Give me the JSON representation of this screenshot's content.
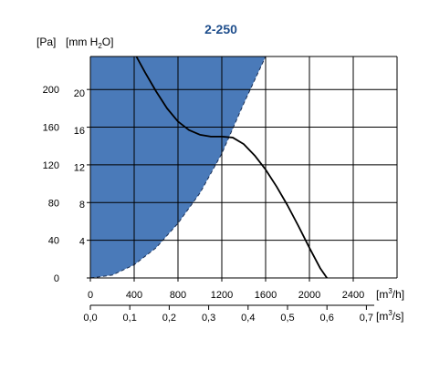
{
  "chart_data": {
    "type": "line",
    "title": "2-250",
    "y_units": {
      "pa": "[Pa]",
      "mmh2o_prefix": "[mm H",
      "mmh2o_sub": "2",
      "mmh2o_suffix": "O]"
    },
    "x_units": {
      "m3h_prefix": "[m",
      "m3h_sup": "3",
      "m3h_suffix": "/h]",
      "m3s_prefix": "[m",
      "m3s_sup": "3",
      "m3s_suffix": "/s]"
    },
    "xlim": [
      0,
      2800
    ],
    "ylim": [
      0,
      235
    ],
    "x_ticks": [
      0,
      400,
      800,
      1200,
      1600,
      2000,
      2400
    ],
    "x_tick_labels": [
      "0",
      "400",
      "800",
      "1200",
      "1600",
      "2000",
      "2400"
    ],
    "y_ticks_pa": [
      0,
      40,
      80,
      120,
      160,
      200
    ],
    "y_tick_labels_pa": [
      "0",
      "40",
      "80",
      "120",
      "160",
      "200"
    ],
    "y_ticks_mm": [
      4,
      8,
      12,
      16,
      20
    ],
    "y_tick_labels_mm": [
      "4",
      "8",
      "12",
      "16",
      "20"
    ],
    "x2_ticks": [
      0,
      0.1,
      0.2,
      0.3,
      0.4,
      0.5,
      0.6,
      0.7
    ],
    "x2_tick_labels": [
      "0,0",
      "0,1",
      "0,2",
      "0,3",
      "0,4",
      "0,5",
      "0,6",
      "0,7"
    ],
    "grid": true,
    "fill_color": "#4a7ab9",
    "shaded_region": {
      "boundary_x": [
        0,
        200,
        400,
        600,
        800,
        1000,
        1200,
        1400,
        1600
      ],
      "boundary_y": [
        0,
        3,
        14,
        32,
        58,
        90,
        132,
        185,
        235
      ]
    },
    "series": [
      {
        "x": [
          420,
          500,
          600,
          700,
          800,
          900,
          1000,
          1100,
          1200,
          1300,
          1400,
          1500,
          1600,
          1700,
          1800,
          1900,
          2000,
          2100,
          2160
        ],
        "y": [
          235,
          218,
          198,
          180,
          166,
          157,
          152,
          150,
          150,
          149,
          142,
          130,
          115,
          97,
          77,
          55,
          32,
          10,
          0
        ]
      }
    ]
  }
}
